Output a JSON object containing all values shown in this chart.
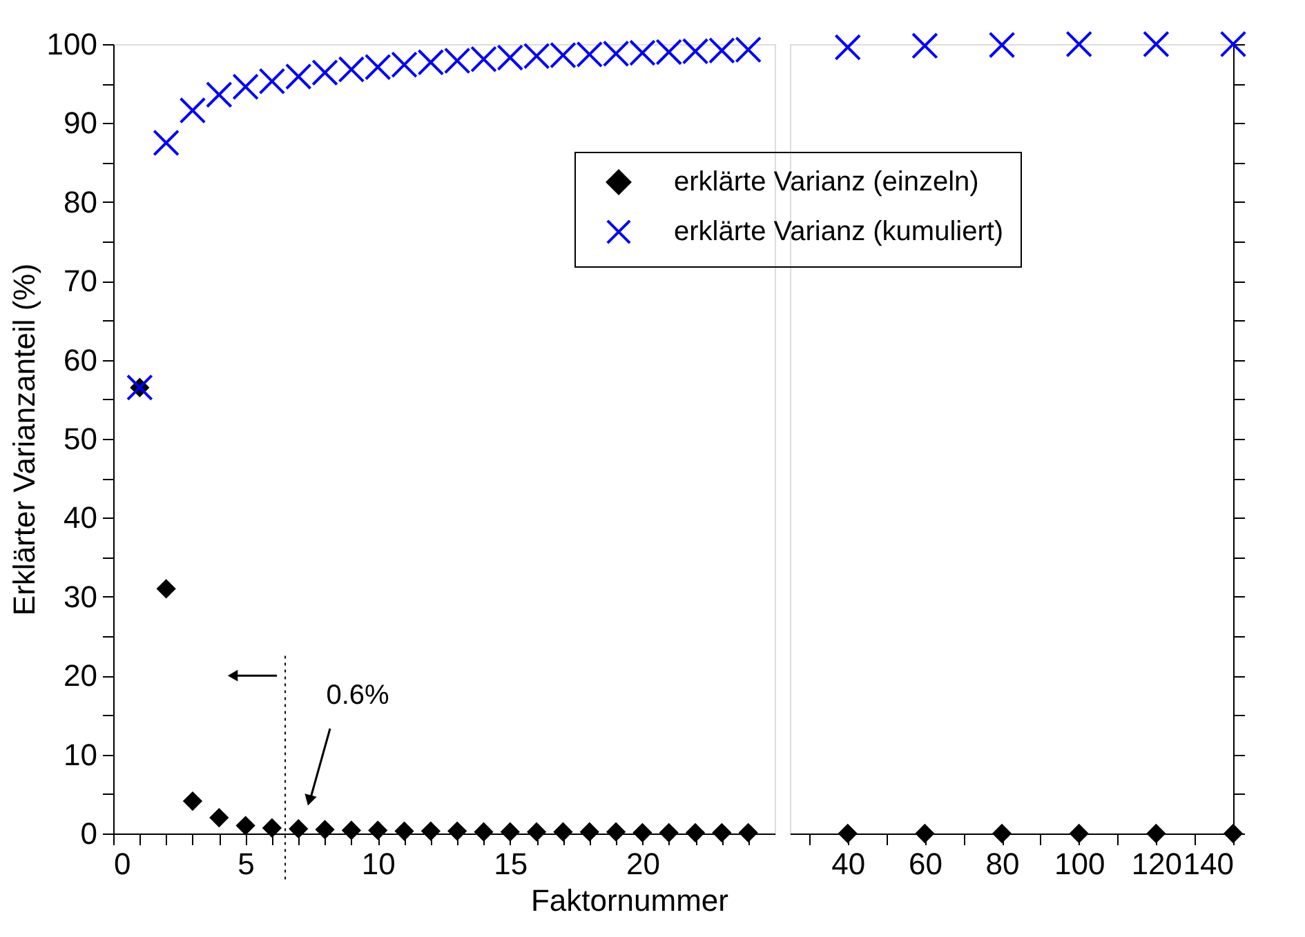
{
  "chart_data": [
    {
      "type": "scatter",
      "xlabel": "Faktornummer",
      "ylabel": "Erklärter Varianzanteil (%)",
      "xlim": [
        0,
        25
      ],
      "xticks": [
        0,
        {
          "value": 1,
          "label": null
        },
        {
          "value": 2,
          "label": null
        },
        {
          "value": 3,
          "label": null
        },
        {
          "value": 4,
          "label": null
        },
        5,
        {
          "value": 6,
          "label": null
        },
        {
          "value": 7,
          "label": null
        },
        {
          "value": 8,
          "label": null
        },
        {
          "value": 9,
          "label": null
        },
        10,
        {
          "value": 11,
          "label": null
        },
        {
          "value": 12,
          "label": null
        },
        {
          "value": 13,
          "label": null
        },
        {
          "value": 14,
          "label": null
        },
        15,
        {
          "value": 16,
          "label": null
        },
        {
          "value": 17,
          "label": null
        },
        {
          "value": 18,
          "label": null
        },
        {
          "value": 19,
          "label": null
        },
        20,
        {
          "value": 21,
          "label": null
        },
        {
          "value": 22,
          "label": null
        },
        {
          "value": 23,
          "label": null
        },
        {
          "value": 24,
          "label": null
        }
      ],
      "ylim": [
        0,
        100
      ],
      "yticks": [
        0,
        {
          "value": 5,
          "label": null
        },
        10,
        {
          "value": 15,
          "label": null
        },
        20,
        {
          "value": 25,
          "label": null
        },
        30,
        {
          "value": 35,
          "label": null
        },
        40,
        {
          "value": 45,
          "label": null
        },
        50,
        {
          "value": 55,
          "label": null
        },
        60,
        {
          "value": 65,
          "label": null
        },
        70,
        {
          "value": 75,
          "label": null
        },
        80,
        {
          "value": 85,
          "label": null
        },
        90,
        {
          "value": 95,
          "label": null
        },
        100
      ],
      "x": [
        1,
        2,
        3,
        4,
        5,
        6,
        7,
        8,
        9,
        10,
        11,
        12,
        13,
        14,
        15,
        16,
        17,
        18,
        19,
        20,
        21,
        22,
        23,
        24
      ],
      "series": [
        {
          "name": "erklärte Varianz (einzeln)",
          "color": "#000000",
          "marker": "diamond",
          "values": [
            56.5,
            31,
            4.1,
            2.0,
            1.0,
            0.7,
            0.6,
            0.5,
            0.4,
            0.4,
            0.3,
            0.3,
            0.3,
            0.2,
            0.2,
            0.2,
            0.2,
            0.2,
            0.2,
            0.1,
            0.1,
            0.1,
            0.1,
            0.1
          ]
        },
        {
          "name": "erklärte Varianz (kumuliert)",
          "color": "#0000ff",
          "marker": "cross",
          "values": [
            56.5,
            87.5,
            91.6,
            93.6,
            94.6,
            95.3,
            95.9,
            96.4,
            96.8,
            97.1,
            97.4,
            97.7,
            97.9,
            98.1,
            98.3,
            98.5,
            98.6,
            98.7,
            98.8,
            98.9,
            99.0,
            99.1,
            99.2,
            99.3
          ]
        }
      ],
      "ref_lines": [
        {
          "axis": "x",
          "value": 6.5,
          "label": null,
          "line_style": "dotted",
          "color": "#000000"
        }
      ],
      "annotations": [
        "0.6%"
      ],
      "legend": "top right",
      "grid": false
    },
    {
      "type": "scatter",
      "xlim": [
        25,
        140
      ],
      "xticks": [
        {
          "value": 30,
          "label": null
        },
        40,
        {
          "value": 50,
          "label": null
        },
        60,
        {
          "value": 70,
          "label": null
        },
        80,
        {
          "value": 90,
          "label": null
        },
        100,
        {
          "value": 110,
          "label": null
        },
        120,
        {
          "value": 130,
          "label": null
        },
        140
      ],
      "ylim": [
        0,
        100
      ],
      "yticks": [
        0,
        {
          "value": 5,
          "label": null
        },
        10,
        {
          "value": 15,
          "label": null
        },
        20,
        {
          "value": 25,
          "label": null
        },
        30,
        {
          "value": 35,
          "label": null
        },
        40,
        {
          "value": 45,
          "label": null
        },
        50,
        {
          "value": 55,
          "label": null
        },
        60,
        {
          "value": 65,
          "label": null
        },
        70,
        {
          "value": 75,
          "label": null
        },
        80,
        {
          "value": 85,
          "label": null
        },
        90,
        {
          "value": 95,
          "label": null
        },
        100
      ],
      "tick_labels": "x",
      "x": [
        40,
        60,
        80,
        100,
        120,
        140
      ],
      "series": [
        {
          "color": "#000000",
          "marker": "diamond",
          "values": [
            0,
            0,
            0,
            0,
            0,
            0
          ]
        },
        {
          "color": "#0000ff",
          "marker": "cross",
          "values": [
            99.6,
            99.8,
            99.9,
            100,
            100,
            100
          ]
        }
      ],
      "grid": false
    }
  ]
}
